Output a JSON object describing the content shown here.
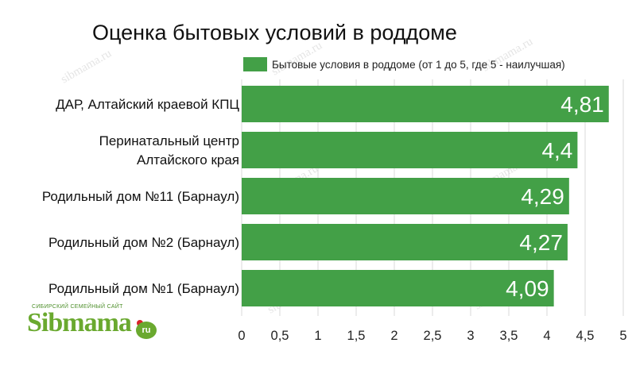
{
  "chart_data": {
    "type": "bar",
    "orientation": "horizontal",
    "title": "Оценка бытовых условий в роддоме",
    "categories": [
      [
        "ДАР, Алтайский краевой КПЦ"
      ],
      [
        "Перинатальный центр",
        "Алтайского края"
      ],
      [
        "Родильный дом №11 (Барнаул)"
      ],
      [
        "Родильный дом №2 (Барнаул)"
      ],
      [
        "Родильный дом №1 (Барнаул)"
      ]
    ],
    "series": [
      {
        "name": "Бытовые условия в роддоме (от 1 до 5, где 5 - наилучшая)",
        "values": [
          4.81,
          4.4,
          4.29,
          4.27,
          4.09
        ],
        "labels": [
          "4,81",
          "4,4",
          "4,29",
          "4,27",
          "4,09"
        ],
        "color": "#43a047"
      }
    ],
    "xlim": [
      0,
      5
    ],
    "ticks": [
      0,
      0.5,
      1,
      1.5,
      2,
      2.5,
      3,
      3.5,
      4,
      4.5,
      5
    ],
    "tick_labels": [
      "0",
      "0,5",
      "1",
      "1,5",
      "2",
      "2,5",
      "3",
      "3,5",
      "4",
      "4,5",
      "5"
    ],
    "grid": true,
    "legend_position": "top-right"
  },
  "watermark": {
    "text": "sibmama.ru"
  },
  "logo": {
    "tagline": "СИБИРСКИЙ СЕМЕЙНЫЙ САЙТ",
    "word": "Sibmama",
    "suffix": "ru"
  },
  "colors": {
    "bar": "#43a047",
    "grid": "#d9d9d9",
    "logo_green": "#6aa92f",
    "logo_red": "#d9232a"
  }
}
